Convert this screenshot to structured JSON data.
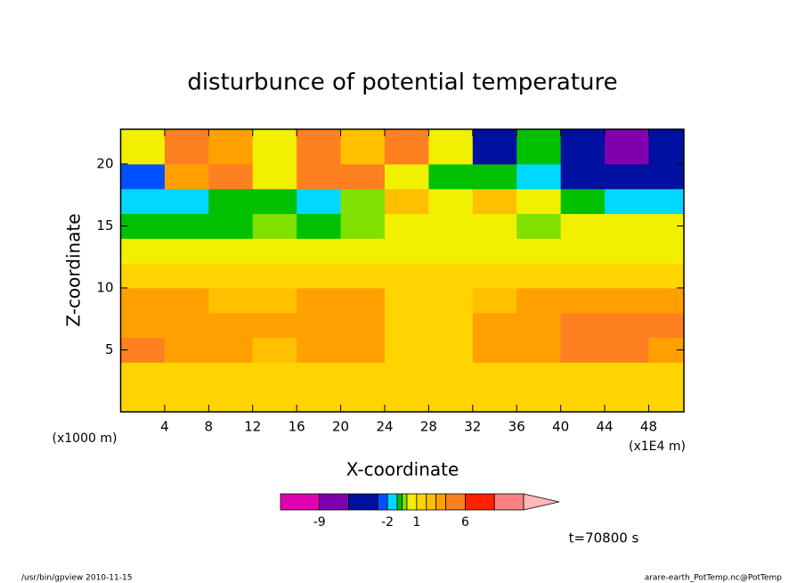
{
  "chart_data": {
    "type": "contour",
    "title": "disturbunce of potential temperature",
    "x_label": "X-coordinate",
    "y_label": "Z-coordinate",
    "x_unit": "(x1E4 m)",
    "y_unit": "(x1000 m)",
    "xlim": [
      0,
      51.2
    ],
    "ylim": [
      0,
      22.8
    ],
    "xticks": [
      4,
      8,
      12,
      16,
      20,
      24,
      28,
      32,
      36,
      40,
      44,
      48
    ],
    "yticks": [
      5,
      10,
      15,
      20
    ],
    "x": [
      2,
      6,
      10,
      14,
      18,
      22,
      26,
      30,
      34,
      38,
      42,
      46,
      50
    ],
    "y": [
      1,
      3,
      5,
      7,
      9,
      11,
      13,
      15,
      17,
      19,
      21
    ],
    "z": [
      [
        1.5,
        1.5,
        1.5,
        1.5,
        1.5,
        1.5,
        1.5,
        1.5,
        1.5,
        1.5,
        1.5,
        1.5,
        1.5
      ],
      [
        1.5,
        1.5,
        1.5,
        1.5,
        1.5,
        1.5,
        1.5,
        1.5,
        1.5,
        1.5,
        1.5,
        1.5,
        1.5
      ],
      [
        5,
        3.5,
        3.5,
        2.5,
        3.5,
        3.5,
        1.5,
        1.5,
        3.5,
        3.5,
        5,
        5,
        3.5
      ],
      [
        3.5,
        3.5,
        3.5,
        3.5,
        3.5,
        3.5,
        1.5,
        1.5,
        3.5,
        3.5,
        5,
        5,
        5
      ],
      [
        3.5,
        3.5,
        2.5,
        2.5,
        3.5,
        3.5,
        1.5,
        1.5,
        2.5,
        3.5,
        3.5,
        3.5,
        3.5
      ],
      [
        1.5,
        1.5,
        1.5,
        1.5,
        1.5,
        1.5,
        1.5,
        1.5,
        1.5,
        1.5,
        1.5,
        1.5,
        1.5
      ],
      [
        0.5,
        0.5,
        0.5,
        0.5,
        0.5,
        0.5,
        0.5,
        0.5,
        0.5,
        0.5,
        0.5,
        0.5,
        0.5
      ],
      [
        -0.7,
        -0.7,
        -0.7,
        -0.2,
        -0.7,
        -0.2,
        0.5,
        0.5,
        0.5,
        -0.2,
        0.5,
        0.5,
        0.5
      ],
      [
        -1.5,
        -1.5,
        -0.7,
        -0.7,
        -1.5,
        -0.2,
        2.5,
        0.5,
        2.5,
        0.5,
        -0.7,
        -1.5,
        -1.5
      ],
      [
        -2.5,
        3.5,
        5,
        0.5,
        5,
        5,
        0.5,
        -0.7,
        -0.7,
        -1.5,
        -4.5,
        -4.5,
        -4.5
      ],
      [
        0.5,
        5,
        3.5,
        0.5,
        5,
        2.5,
        5,
        0.5,
        -4.5,
        -0.7,
        -4.5,
        -7.5,
        -4.5
      ]
    ],
    "levels": [
      -13,
      -9,
      -6,
      -3,
      -2,
      -1,
      -0.5,
      0,
      1,
      2,
      3,
      4,
      6,
      9,
      12
    ],
    "colors": [
      "#e000b0",
      "#8000b0",
      "#0010a0",
      "#0050ff",
      "#00d8ff",
      "#00c000",
      "#80e000",
      "#f0f000",
      "#ffd400",
      "#ffc000",
      "#ffa000",
      "#ff8020",
      "#ff2000",
      "#ff8080"
    ],
    "extend_color": "#ffb8b8",
    "colorbar_ticks": [
      -9,
      -2,
      1,
      6
    ],
    "annotations": {
      "time": "t=70800 s",
      "footer_left": "/usr/bin/gpview  2010-11-15",
      "footer_right": "arare-earth_PotTemp.nc@PotTemp"
    }
  }
}
